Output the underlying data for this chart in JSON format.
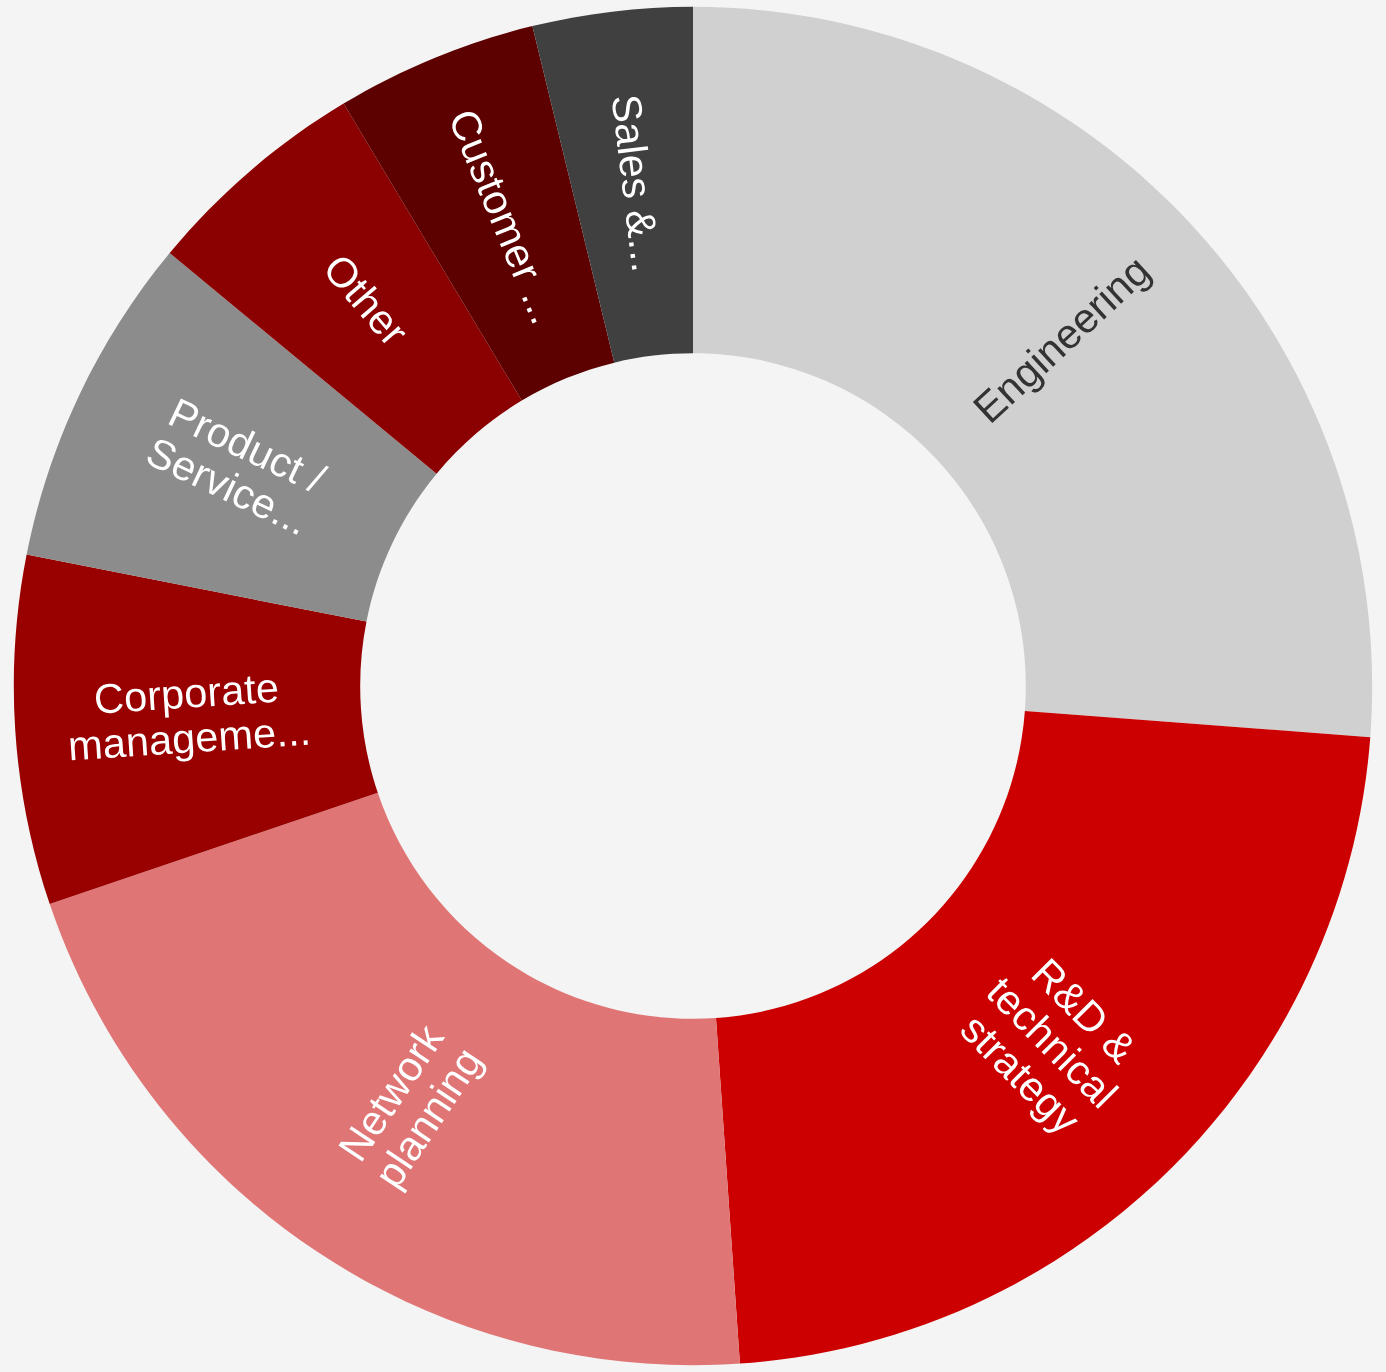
{
  "chart_data": {
    "type": "donut",
    "categories": [
      "Engineering",
      "R&D &\ntechnical\nstrategy",
      "Network\nplanning",
      "Corporate\nmanageme...",
      "Product /\nService...",
      "Other",
      "Customer ...",
      "Sales &..."
    ],
    "values": [
      26.2,
      22.7,
      20.9,
      8.3,
      7.9,
      5.4,
      4.8,
      3.8
    ],
    "colors": [
      "#d0d0d0",
      "#cc0000",
      "#e07575",
      "#990000",
      "#8c8c8c",
      "#8b0000",
      "#5c0000",
      "#404040"
    ],
    "legend": false
  }
}
